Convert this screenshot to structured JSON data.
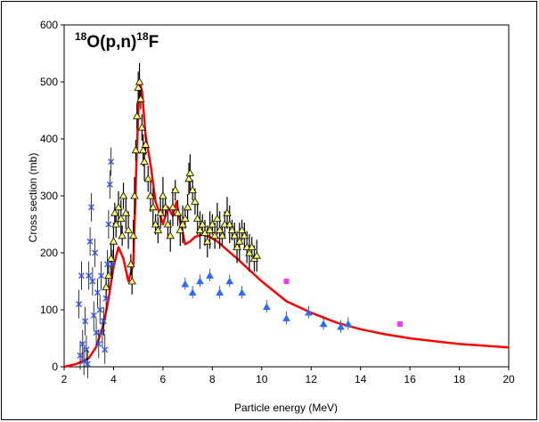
{
  "chart_data": {
    "type": "scatter",
    "title": {
      "a_sup": "18",
      "reaction": "O(p,n)",
      "b_sup": "18",
      "product": "F"
    },
    "xlabel": "Particle energy (MeV)",
    "ylabel": "Cross section (mb)",
    "xlim": [
      2,
      20
    ],
    "ylim": [
      0,
      600
    ],
    "x_ticks": [
      "2",
      "4",
      "6",
      "8",
      "10",
      "12",
      "14",
      "16",
      "18",
      "20"
    ],
    "y_ticks": [
      "0",
      "100",
      "200",
      "300",
      "400",
      "500",
      "600"
    ],
    "grid": false,
    "legend": "none",
    "colors": {
      "curve": "#ff0000",
      "triangle_fill": "#ffff66",
      "blue": "#2b6bff",
      "cross": "#3355ff",
      "magenta": "#ff33ff",
      "errorbar": "#000000"
    },
    "series": [
      {
        "marker": "line",
        "color": "#ff0000",
        "x": [
          2.0,
          2.5,
          3.0,
          3.3,
          3.6,
          3.8,
          4.0,
          4.2,
          4.4,
          4.6,
          4.8,
          4.95,
          5.05,
          5.15,
          5.3,
          5.5,
          5.7,
          5.9,
          6.0,
          6.2,
          6.4,
          6.55,
          6.7,
          6.9,
          7.1,
          7.3,
          7.6,
          7.9,
          8.2,
          8.6,
          9.0,
          9.5,
          10.0,
          11.0,
          12.0,
          13.0,
          14.0,
          15.0,
          16.0,
          17.0,
          18.0,
          19.0,
          20.0
        ],
        "y": [
          0,
          5,
          15,
          35,
          75,
          120,
          175,
          210,
          190,
          150,
          180,
          390,
          500,
          485,
          405,
          355,
          290,
          265,
          250,
          280,
          265,
          290,
          255,
          215,
          220,
          228,
          232,
          228,
          220,
          205,
          190,
          170,
          150,
          115,
          95,
          78,
          66,
          57,
          50,
          45,
          40,
          37,
          34
        ]
      },
      {
        "marker": "triangle-yellow-errorbars",
        "x": [
          3.7,
          3.8,
          3.9,
          4.0,
          4.05,
          4.1,
          4.2,
          4.3,
          4.35,
          4.4,
          4.5,
          4.6,
          4.7,
          4.75,
          4.8,
          4.85,
          4.9,
          4.95,
          5.0,
          5.05,
          5.1,
          5.15,
          5.2,
          5.25,
          5.3,
          5.4,
          5.5,
          5.6,
          5.7,
          5.8,
          5.9,
          6.0,
          6.1,
          6.2,
          6.3,
          6.4,
          6.5,
          6.6,
          6.7,
          6.8,
          6.9,
          7.0,
          7.05,
          7.1,
          7.2,
          7.3,
          7.4,
          7.5,
          7.6,
          7.7,
          7.8,
          7.9,
          8.0,
          8.1,
          8.2,
          8.3,
          8.4,
          8.5,
          8.6,
          8.7,
          8.8,
          8.9,
          9.0,
          9.1,
          9.2,
          9.3,
          9.4,
          9.5,
          9.6,
          9.7,
          9.8
        ],
        "y": [
          140,
          160,
          190,
          220,
          270,
          250,
          280,
          260,
          230,
          300,
          270,
          240,
          180,
          150,
          230,
          300,
          380,
          440,
          490,
          500,
          470,
          420,
          380,
          360,
          390,
          330,
          300,
          280,
          250,
          240,
          270,
          300,
          280,
          250,
          230,
          280,
          310,
          270,
          240,
          250,
          260,
          280,
          330,
          340,
          310,
          290,
          260,
          240,
          250,
          235,
          220,
          240,
          250,
          230,
          260,
          240,
          230,
          250,
          270,
          250,
          240,
          230,
          210,
          220,
          240,
          230,
          210,
          200,
          210,
          190,
          195
        ]
      },
      {
        "marker": "cross-blue",
        "x": [
          2.6,
          2.65,
          2.7,
          2.75,
          2.8,
          2.85,
          2.9,
          2.95,
          3.0,
          3.05,
          3.1,
          3.15,
          3.2,
          3.25,
          3.3,
          3.35,
          3.4,
          3.45,
          3.5,
          3.55,
          3.6,
          3.65,
          3.7,
          3.75,
          3.8,
          3.85,
          3.9,
          3.95
        ],
        "y": [
          110,
          20,
          160,
          40,
          10,
          80,
          30,
          5,
          160,
          220,
          280,
          150,
          90,
          200,
          60,
          130,
          40,
          100,
          160,
          60,
          80,
          30,
          120,
          180,
          250,
          320,
          360,
          180
        ]
      },
      {
        "marker": "triangle-blue",
        "x": [
          6.9,
          7.2,
          7.5,
          7.9,
          8.3,
          8.7,
          9.2,
          10.2,
          11.0,
          11.9,
          12.5,
          13.2,
          13.5
        ],
        "y": [
          145,
          130,
          150,
          160,
          130,
          150,
          130,
          105,
          85,
          95,
          75,
          70,
          75
        ]
      },
      {
        "marker": "square-magenta",
        "x": [
          11.0,
          15.6
        ],
        "y": [
          150,
          75
        ]
      }
    ]
  }
}
